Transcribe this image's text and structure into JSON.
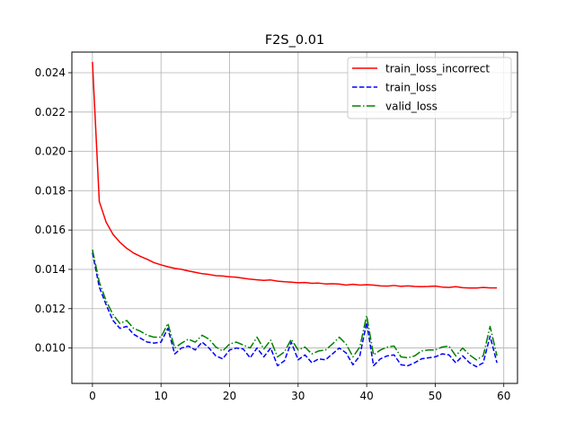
{
  "chart_data": {
    "type": "line",
    "title": "F2S_0.01",
    "xlabel": "",
    "ylabel": "",
    "xlim": [
      -3,
      62
    ],
    "ylim": [
      0.0082,
      0.02505
    ],
    "xticks": [
      0,
      10,
      20,
      30,
      40,
      50,
      60
    ],
    "yticks": [
      0.01,
      0.012,
      0.014,
      0.016,
      0.018,
      0.02,
      0.022,
      0.024
    ],
    "ytick_labels": [
      "0.010",
      "0.012",
      "0.014",
      "0.016",
      "0.018",
      "0.020",
      "0.022",
      "0.024"
    ],
    "grid": true,
    "legend_position": "top-right",
    "x": [
      0,
      1,
      2,
      3,
      4,
      5,
      6,
      7,
      8,
      9,
      10,
      11,
      12,
      13,
      14,
      15,
      16,
      17,
      18,
      19,
      20,
      21,
      22,
      23,
      24,
      25,
      26,
      27,
      28,
      29,
      30,
      31,
      32,
      33,
      34,
      35,
      36,
      37,
      38,
      39,
      40,
      41,
      42,
      43,
      44,
      45,
      46,
      47,
      48,
      49,
      50,
      51,
      52,
      53,
      54,
      55,
      56,
      57,
      58,
      59
    ],
    "series": [
      {
        "name": "train_loss_incorrect",
        "color": "#ff0000",
        "style": "solid",
        "values": [
          0.02455,
          0.01745,
          0.0164,
          0.01578,
          0.01538,
          0.01507,
          0.01483,
          0.01466,
          0.01451,
          0.01434,
          0.01423,
          0.01413,
          0.01405,
          0.014,
          0.01392,
          0.01385,
          0.01378,
          0.01374,
          0.01368,
          0.01366,
          0.01362,
          0.0136,
          0.01355,
          0.0135,
          0.01347,
          0.01344,
          0.01346,
          0.0134,
          0.01337,
          0.01335,
          0.01332,
          0.01333,
          0.01329,
          0.0133,
          0.01326,
          0.01327,
          0.01325,
          0.0132,
          0.01324,
          0.0132,
          0.01322,
          0.0132,
          0.01316,
          0.01315,
          0.01318,
          0.01314,
          0.01316,
          0.01313,
          0.01312,
          0.01313,
          0.01315,
          0.0131,
          0.01308,
          0.01312,
          0.01307,
          0.01305,
          0.01305,
          0.01308,
          0.01306,
          0.01306
        ]
      },
      {
        "name": "train_loss",
        "color": "#0000ff",
        "style": "dashed",
        "values": [
          0.01485,
          0.0131,
          0.0122,
          0.0114,
          0.011,
          0.0111,
          0.0107,
          0.0105,
          0.0103,
          0.01025,
          0.0103,
          0.011,
          0.0097,
          0.01,
          0.0101,
          0.0099,
          0.0103,
          0.01,
          0.0096,
          0.00945,
          0.0099,
          0.01,
          0.00995,
          0.0095,
          0.01,
          0.00955,
          0.01,
          0.0091,
          0.00935,
          0.0103,
          0.0094,
          0.00965,
          0.00925,
          0.00945,
          0.0094,
          0.0097,
          0.01,
          0.00975,
          0.00915,
          0.0096,
          0.0113,
          0.0091,
          0.00945,
          0.0096,
          0.00965,
          0.00915,
          0.0091,
          0.00925,
          0.00945,
          0.0095,
          0.00955,
          0.0097,
          0.00965,
          0.00925,
          0.0096,
          0.00925,
          0.00905,
          0.00925,
          0.0106,
          0.00925
        ]
      },
      {
        "name": "valid_loss",
        "color": "#008000",
        "style": "dashdot",
        "values": [
          0.015,
          0.01335,
          0.0124,
          0.0117,
          0.01125,
          0.0114,
          0.011,
          0.01085,
          0.01065,
          0.01055,
          0.01055,
          0.01125,
          0.01,
          0.01025,
          0.01045,
          0.0103,
          0.01065,
          0.01045,
          0.01005,
          0.00985,
          0.0102,
          0.0103,
          0.01015,
          0.01,
          0.01055,
          0.00995,
          0.0104,
          0.00955,
          0.0098,
          0.01045,
          0.0099,
          0.01005,
          0.0097,
          0.00985,
          0.0099,
          0.0102,
          0.01055,
          0.0102,
          0.00955,
          0.01005,
          0.01165,
          0.00965,
          0.0099,
          0.01005,
          0.0101,
          0.00955,
          0.0095,
          0.0096,
          0.00985,
          0.0099,
          0.0099,
          0.01005,
          0.0101,
          0.0096,
          0.01,
          0.00965,
          0.0094,
          0.0096,
          0.0111,
          0.0096
        ]
      }
    ]
  }
}
